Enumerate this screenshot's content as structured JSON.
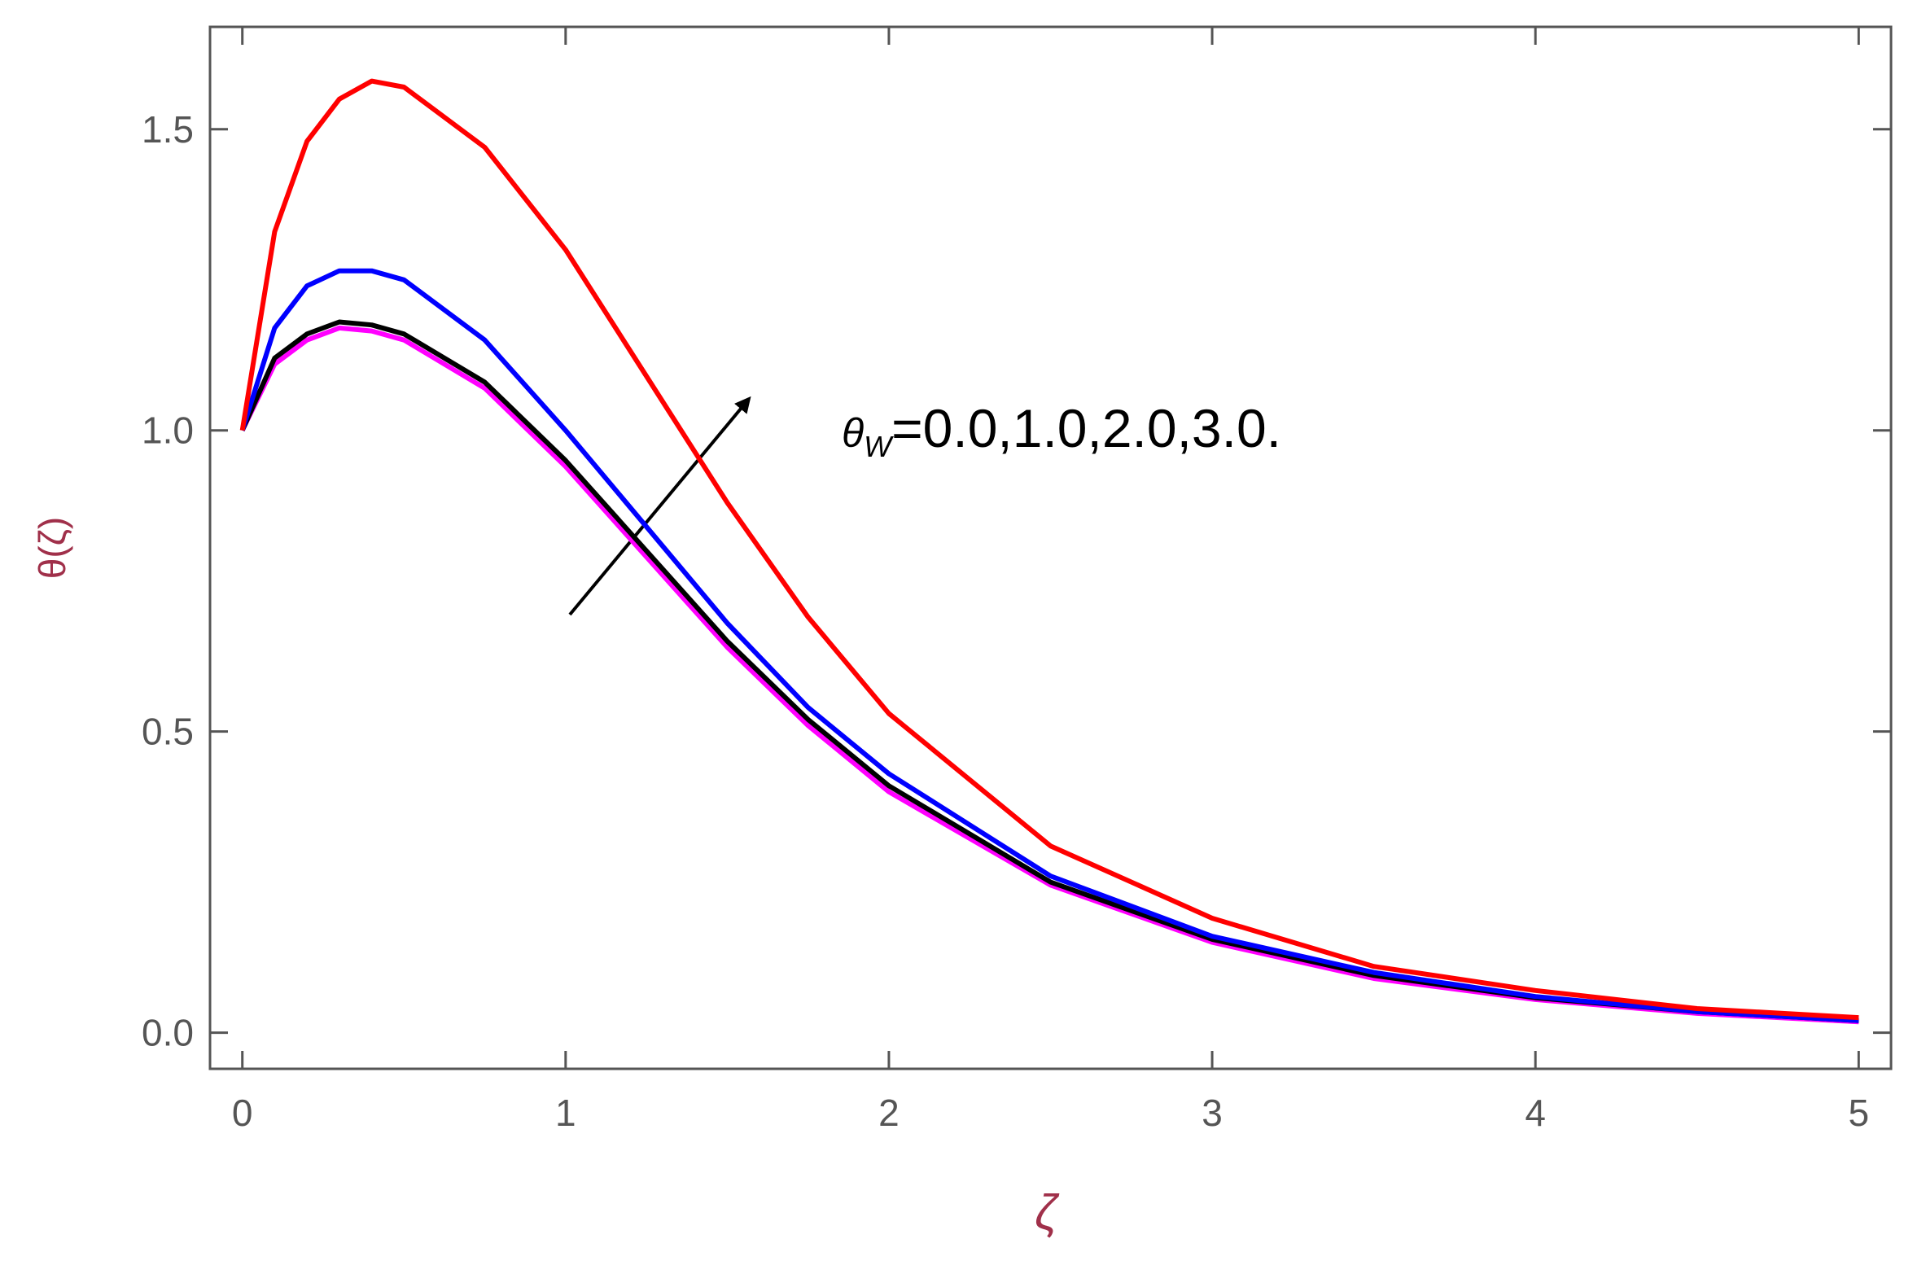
{
  "chart_data": {
    "type": "line",
    "x_label": "ζ",
    "y_label": "θ(ζ)",
    "annotation": {
      "symbol": "θ",
      "subscript": "W",
      "text": "=0.0,1.0,2.0,3.0."
    },
    "x": [
      0,
      0.1,
      0.2,
      0.3,
      0.4,
      0.5,
      0.75,
      1,
      1.25,
      1.5,
      1.75,
      2,
      2.5,
      3,
      3.5,
      4,
      4.5,
      5
    ],
    "series": [
      {
        "color": "#ff0000",
        "values": [
          1.0,
          1.33,
          1.48,
          1.55,
          1.58,
          1.57,
          1.47,
          1.3,
          1.09,
          0.88,
          0.69,
          0.53,
          0.31,
          0.19,
          0.11,
          0.07,
          0.04,
          0.025
        ]
      },
      {
        "color": "#0000ff",
        "values": [
          1.0,
          1.17,
          1.24,
          1.265,
          1.265,
          1.25,
          1.15,
          1.0,
          0.84,
          0.68,
          0.54,
          0.43,
          0.26,
          0.16,
          0.1,
          0.06,
          0.035,
          0.02
        ]
      },
      {
        "color": "#000000",
        "values": [
          1.0,
          1.12,
          1.16,
          1.18,
          1.175,
          1.16,
          1.08,
          0.95,
          0.8,
          0.65,
          0.52,
          0.41,
          0.25,
          0.155,
          0.095,
          0.058,
          0.035,
          0.02
        ]
      },
      {
        "color": "#ff00ff",
        "values": [
          1.0,
          1.11,
          1.15,
          1.17,
          1.165,
          1.15,
          1.07,
          0.94,
          0.79,
          0.64,
          0.51,
          0.4,
          0.245,
          0.15,
          0.09,
          0.055,
          0.032,
          0.018
        ]
      }
    ],
    "xlim": [
      -0.1,
      5.1
    ],
    "ylim": [
      -0.06,
      1.67
    ],
    "xticks": [
      0,
      1,
      2,
      3,
      4,
      5
    ],
    "yticks": [
      {
        "value": 0,
        "label": "0.0"
      },
      0.5,
      {
        "value": 1,
        "label": "1.0"
      },
      1.5
    ],
    "grid": false
  }
}
